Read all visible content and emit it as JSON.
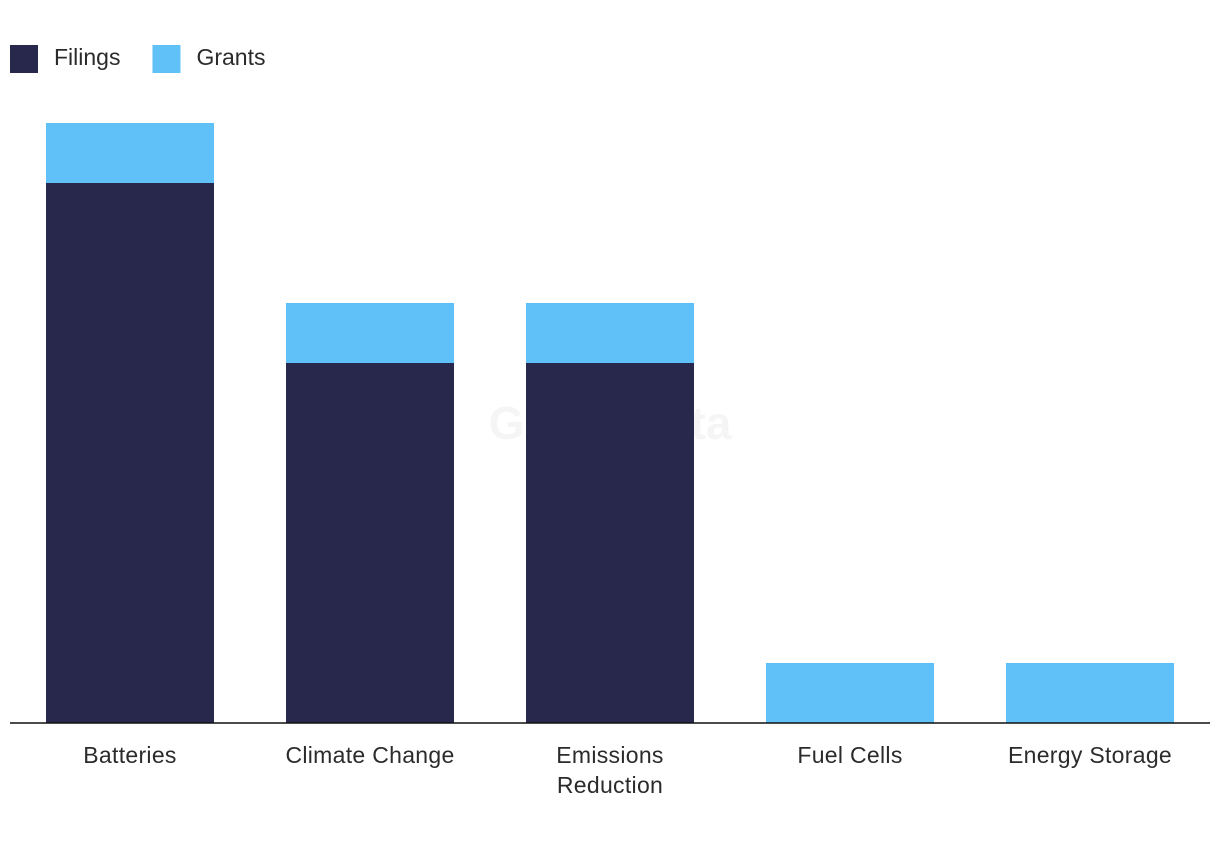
{
  "chart_data": {
    "type": "stacked_bar",
    "categories": [
      "Batteries",
      "Climate Change",
      "Emissions Reduction",
      "Fuel Cells",
      "Energy Storage"
    ],
    "series": [
      {
        "name": "Filings",
        "color": "#27284b",
        "values": [
          9,
          6,
          6,
          0,
          0
        ]
      },
      {
        "name": "Grants",
        "color": "#60c0f8",
        "values": [
          1,
          1,
          1,
          1,
          1
        ]
      }
    ],
    "ylim": [
      0,
      10
    ],
    "legend": "top-left",
    "watermark": "GlobalData"
  }
}
